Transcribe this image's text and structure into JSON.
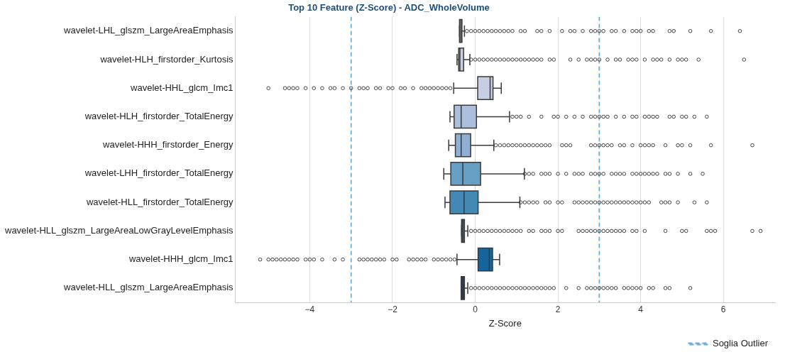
{
  "chart_data": {
    "type": "box",
    "orientation": "horizontal",
    "title": "Top 10 Feature (Z-Score) - ADC_WholeVolume",
    "xlabel": "Z-Score",
    "categories": [
      "wavelet-LHL_glszm_LargeAreaEmphasis",
      "wavelet-HLH_firstorder_Kurtosis",
      "wavelet-HHL_glcm_Imc1",
      "wavelet-HLH_firstorder_TotalEnergy",
      "wavelet-HHH_firstorder_Energy",
      "wavelet-LHH_firstorder_TotalEnergy",
      "wavelet-HLL_firstorder_TotalEnergy",
      "wavelet-HLL_glszm_LargeAreaLowGrayLevelEmphasis",
      "wavelet-HHH_glcm_Imc1",
      "wavelet-HLL_glszm_LargeAreaEmphasis"
    ],
    "colors": [
      "#d4d4e6",
      "#c9cde3",
      "#c8cfe4",
      "#abbfdc",
      "#8fb0d3",
      "#68a0c3",
      "#428ab5",
      "#2878ad",
      "#16649a",
      "#24405c"
    ],
    "boxes": [
      {
        "low": -0.38,
        "q1": -0.38,
        "median": -0.35,
        "q3": -0.32,
        "high": -0.26,
        "outliers": [
          -0.2,
          -0.1,
          0,
          0.1,
          0.2,
          0.3,
          0.4,
          0.5,
          0.6,
          0.7,
          0.8,
          0.9,
          1.1,
          1.2,
          1.5,
          1.6,
          1.8,
          2.1,
          2.3,
          2.4,
          2.6,
          2.8,
          2.9,
          3,
          3.1,
          3.3,
          3.4,
          3.6,
          3.8,
          3.9,
          4,
          4.2,
          4.3,
          4.7,
          4.8,
          5.2,
          5.7,
          6.4
        ]
      },
      {
        "low": -0.44,
        "q1": -0.4,
        "median": -0.37,
        "q3": -0.28,
        "high": -0.13,
        "outliers": [
          -0.1,
          0,
          0.1,
          0.2,
          0.3,
          0.4,
          0.5,
          0.6,
          0.7,
          0.8,
          0.9,
          1,
          1.1,
          1.2,
          1.3,
          1.4,
          1.5,
          1.6,
          1.8,
          1.9,
          2.3,
          2.5,
          2.7,
          2.8,
          2.9,
          3,
          3.2,
          3.4,
          3.5,
          3.7,
          3.8,
          3.9,
          4.1,
          4.3,
          4.4,
          4.5,
          4.7,
          4.9,
          5,
          5.1,
          5.4,
          6.5
        ]
      },
      {
        "low": -0.52,
        "q1": 0.06,
        "median": 0.36,
        "q3": 0.43,
        "high": 0.63,
        "outliers": [
          -5,
          -4.6,
          -4.5,
          -4.4,
          -4.3,
          -4.1,
          -3.9,
          -3.7,
          -3.5,
          -3.4,
          -3.2,
          -3,
          -2.8,
          -2.7,
          -2.6,
          -2.4,
          -2.3,
          -2.1,
          -2,
          -1.8,
          -1.7,
          -1.5,
          -1.3,
          -1.2,
          -1.1,
          -1,
          -0.9,
          -0.8,
          -0.7,
          -0.6
        ]
      },
      {
        "low": -0.61,
        "q1": -0.51,
        "median": -0.34,
        "q3": 0.03,
        "high": 0.83,
        "outliers": [
          0.9,
          1,
          1.1,
          1.3,
          1.6,
          1.9,
          2,
          2.2,
          2.4,
          2.6,
          2.8,
          2.9,
          3,
          3.1,
          3.2,
          3.4,
          3.6,
          3.8,
          3.9,
          4.1,
          4.2,
          4.3,
          4.4,
          4.7,
          4.8,
          5,
          5.1,
          5.3,
          5.6
        ]
      },
      {
        "low": -0.64,
        "q1": -0.48,
        "median": -0.34,
        "q3": -0.11,
        "high": 0.45,
        "outliers": [
          0.5,
          0.6,
          0.7,
          0.8,
          0.9,
          1,
          1.1,
          1.2,
          1.3,
          1.4,
          1.5,
          1.6,
          1.7,
          1.8,
          2.1,
          2.2,
          2.3,
          2.8,
          2.9,
          3,
          3.1,
          3.2,
          3.3,
          3.5,
          3.6,
          3.8,
          4,
          4.1,
          4.2,
          4.3,
          4.6,
          4.9,
          5,
          5.2,
          5.7,
          6.7
        ]
      },
      {
        "low": -0.76,
        "q1": -0.59,
        "median": -0.3,
        "q3": 0.13,
        "high": 1.19,
        "outliers": [
          1.2,
          1.3,
          1.4,
          1.6,
          1.7,
          1.8,
          2,
          2.2,
          2.4,
          2.5,
          2.6,
          2.8,
          2.9,
          3,
          3.1,
          3.3,
          3.4,
          3.5,
          3.6,
          3.8,
          3.9,
          4,
          4.1,
          4.2,
          4.3,
          4.4,
          4.6,
          4.7,
          4.9,
          5.2,
          5.5
        ]
      },
      {
        "low": -0.73,
        "q1": -0.61,
        "median": -0.27,
        "q3": 0.07,
        "high": 1.08,
        "outliers": [
          1.1,
          1.2,
          1.3,
          1.4,
          1.5,
          1.7,
          1.8,
          2,
          2.1,
          2.4,
          2.5,
          2.6,
          2.7,
          2.8,
          2.9,
          3,
          3.1,
          3.2,
          3.3,
          3.4,
          3.5,
          3.6,
          3.7,
          3.8,
          3.9,
          4,
          4.1,
          4.2,
          4.5,
          4.6,
          4.7,
          4.9,
          5.3,
          5.6
        ]
      },
      {
        "low": -0.33,
        "q1": -0.33,
        "median": -0.3,
        "q3": -0.26,
        "high": -0.18,
        "outliers": [
          -0.1,
          0,
          0.1,
          0.2,
          0.3,
          0.4,
          0.5,
          0.6,
          0.7,
          0.8,
          0.9,
          1,
          1.1,
          1.3,
          1.4,
          1.6,
          1.7,
          1.8,
          2,
          2.1,
          2.5,
          2.6,
          2.7,
          2.8,
          2.9,
          3,
          3.1,
          3.2,
          3.3,
          3.4,
          3.5,
          3.6,
          3.8,
          3.9,
          4.1,
          4.6,
          5,
          5.1,
          5.6,
          5.7,
          5.8,
          6.7,
          6.9
        ]
      },
      {
        "low": -0.44,
        "q1": 0.07,
        "median": 0.34,
        "q3": 0.42,
        "high": 0.59,
        "outliers": [
          -5.2,
          -5,
          -4.9,
          -4.8,
          -4.7,
          -4.6,
          -4.5,
          -4.4,
          -4.3,
          -4.1,
          -4,
          -3.9,
          -3.7,
          -3.4,
          -3.2,
          -2.8,
          -2.7,
          -2.6,
          -2.5,
          -2.4,
          -2.3,
          -2.2,
          -2,
          -1.9,
          -1.6,
          -1.5,
          -1.4,
          -1.3,
          -1.2,
          -1,
          -0.9,
          -0.8,
          -0.7,
          -0.6,
          -0.5
        ]
      },
      {
        "low": -0.34,
        "q1": -0.34,
        "median": -0.3,
        "q3": -0.26,
        "high": -0.18,
        "outliers": [
          -0.1,
          0,
          0.1,
          0.2,
          0.3,
          0.4,
          0.5,
          0.6,
          0.7,
          0.8,
          0.9,
          1,
          1.1,
          1.2,
          1.3,
          1.4,
          1.5,
          1.6,
          1.7,
          1.8,
          1.9,
          2.2,
          2.5,
          2.7,
          2.8,
          2.9,
          3,
          3.1,
          3.2,
          3.3,
          3.4,
          3.6,
          3.7,
          3.8,
          3.9,
          4,
          4.2,
          4.3,
          4.6,
          4.7,
          5.2
        ]
      }
    ],
    "xlim": [
      -5.8,
      7.25
    ],
    "xticks": [
      {
        "value": -4,
        "label": "−4"
      },
      {
        "value": -2,
        "label": "−2"
      },
      0,
      2,
      4,
      6
    ],
    "ref_lines": [
      {
        "axis": "x",
        "value": -3,
        "label": "Soglia Outlier",
        "color": "#6baed6",
        "line_style": "dashed"
      },
      {
        "axis": "x",
        "value": 3,
        "color": "#6baed6",
        "line_style": "dashed"
      }
    ],
    "grid": "x",
    "legend": "bottom right"
  }
}
